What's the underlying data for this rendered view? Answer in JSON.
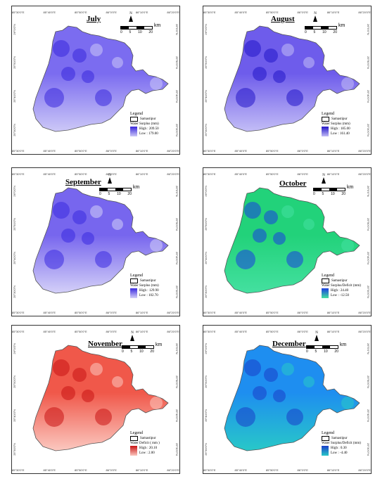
{
  "ticks": {
    "top": [
      "85°30'0\"E",
      "85°40'0\"E",
      "85°50'0\"E",
      "86°0'0\"E",
      "86°10'0\"E",
      "86°20'0\"E"
    ],
    "side": [
      "26°0'0\"N",
      "25°50'0\"N",
      "25°40'0\"N",
      "25°30'0\"N"
    ]
  },
  "scale": {
    "labels": [
      "0",
      "5",
      "10",
      "20"
    ],
    "unit": "km",
    "north": "N"
  },
  "legend_common": {
    "boundary": "Samastipur"
  },
  "panels": [
    {
      "title": "July",
      "legend_title": "Legend",
      "variable": "Water Surplus (mm)",
      "high": "High : 209.50",
      "low": "Low : 179.00",
      "colors": {
        "base": "#7b6cf0",
        "light": "#ccc8f7",
        "dark": "#3a28dc"
      }
    },
    {
      "title": "August",
      "legend_title": "Legend",
      "variable": "Water Surplus (mm)",
      "high": "High : 185.00",
      "low": "Low : 161.40",
      "colors": {
        "base": "#6e5ceb",
        "light": "#c3bdf6",
        "dark": "#2416c8"
      }
    },
    {
      "title": "September",
      "legend_title": "Legend",
      "variable": "Water Surplus (mm)",
      "high": "High : 129.90",
      "low": "Low : 102.70",
      "colors": {
        "base": "#7766ee",
        "light": "#d4d0f8",
        "dark": "#3b2ae0"
      }
    },
    {
      "title": "October",
      "legend_title": "Legend",
      "variable": "Water Surplus/Deficit (mm)",
      "high": "High : 24.40",
      "low": "Low : -12.50",
      "colors": {
        "base": "#22d27a",
        "light": "#44e0a0",
        "dark": "#1a3fe0"
      }
    },
    {
      "title": "November",
      "legend_title": "Legend",
      "variable": "Water Deficit ( mm )",
      "high": "High : 20.10",
      "low": "Low : 2.00",
      "colors": {
        "base": "#f0584a",
        "light": "#fbc8c0",
        "dark": "#c81414"
      }
    },
    {
      "title": "December",
      "legend_title": "Legend",
      "variable": "Water Surplus/Deficit (mm)",
      "high": "High : 0.30",
      "low": "Low : -4.40",
      "colors": {
        "base": "#1e8ef0",
        "light": "#28c8c8",
        "dark": "#1a3ec8"
      }
    }
  ]
}
